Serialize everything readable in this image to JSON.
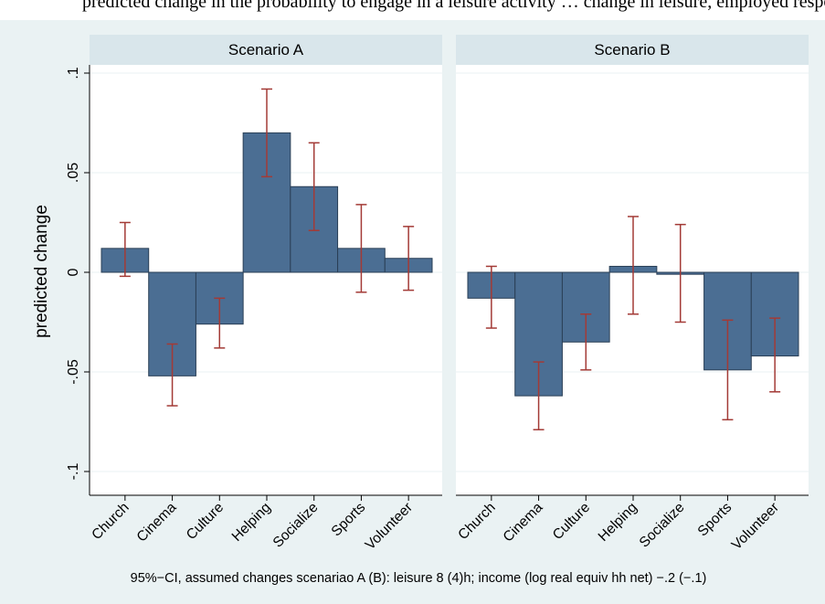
{
  "top_text": "predicted change in the probability to engage in a leisure activity … change in leisure, employed respondents, predicted probabilities",
  "chart_data": {
    "type": "bar",
    "ylabel": "predicted change",
    "ylim": [
      -0.1,
      0.1
    ],
    "yticks": [
      {
        "value": -0.1,
        "label": "-.1"
      },
      {
        "value": -0.05,
        "label": "-.05"
      },
      {
        "value": 0,
        "label": "0"
      },
      {
        "value": 0.05,
        "label": ".05"
      },
      {
        "value": 0.1,
        "label": ".1"
      }
    ],
    "categories": [
      "Church",
      "Cinema",
      "Culture",
      "Helping",
      "Socialize",
      "Sports",
      "Volunteer"
    ],
    "panels": [
      {
        "title": "Scenario A",
        "values": [
          0.012,
          -0.052,
          -0.026,
          0.07,
          0.043,
          0.012,
          0.007
        ],
        "ci_low": [
          -0.002,
          -0.067,
          -0.038,
          0.048,
          0.021,
          -0.01,
          -0.009
        ],
        "ci_high": [
          0.025,
          -0.036,
          -0.013,
          0.092,
          0.065,
          0.034,
          0.023
        ]
      },
      {
        "title": "Scenario B",
        "values": [
          -0.013,
          -0.062,
          -0.035,
          0.003,
          -0.001,
          -0.049,
          -0.042
        ],
        "ci_low": [
          -0.028,
          -0.079,
          -0.049,
          -0.021,
          -0.025,
          -0.074,
          -0.06
        ],
        "ci_high": [
          0.003,
          -0.045,
          -0.021,
          0.028,
          0.024,
          -0.024,
          -0.023
        ]
      }
    ],
    "note": "95%−CI, assumed changes scenariao A (B): leisure 8 (4)h; income (log real equiv hh net) −.2 (−.1)",
    "colors": {
      "outer_background": "#eaf2f3",
      "plot_background": "#ffffff",
      "strip_background": "#d9e6eb",
      "bar_fill": "#4b6e93",
      "bar_stroke": "#2a3f56",
      "ci_color": "#a33a36",
      "grid_color": "#eaf2f3"
    },
    "grid": true
  }
}
